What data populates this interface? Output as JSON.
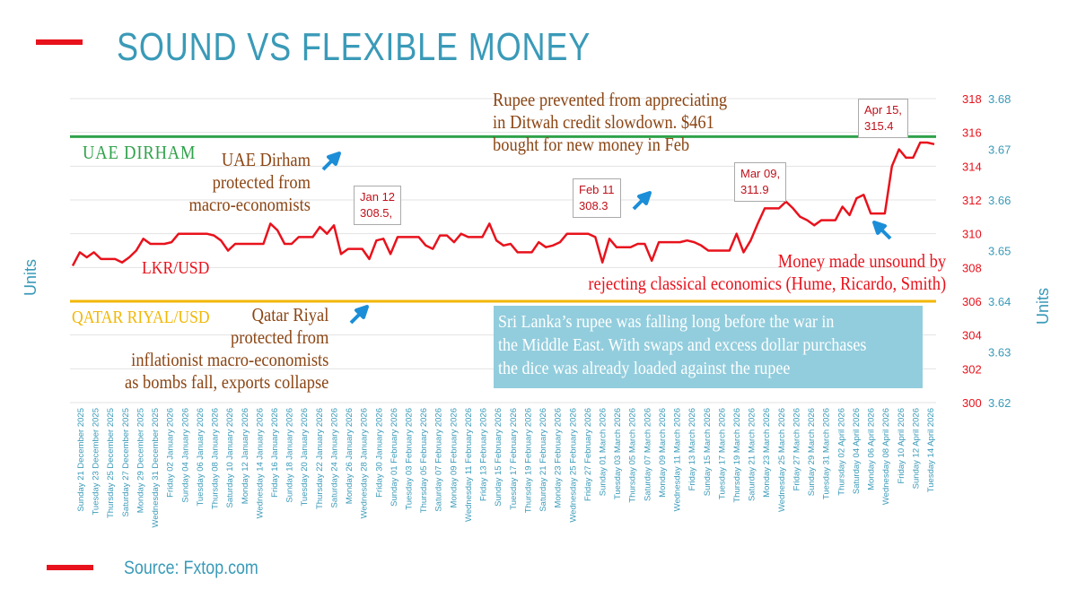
{
  "slide": {
    "title": "SOUND VS FLEXIBLE MONEY",
    "source": "Source: Fxtop.com"
  },
  "colors": {
    "title": "#3a9ab8",
    "lkr_line": "#e8121c",
    "uae_line": "#2fa24a",
    "qatar_line": "#f2b705",
    "annotation": "#8b4513",
    "note_box": "#92cddd",
    "grid": "#e3e3e3"
  },
  "labels": {
    "lkr": "LKR/USD",
    "uae": "UAE DIRHAM",
    "qatar": "QATAR RIYAL/USD",
    "units_left": "Units",
    "units_right": "Units"
  },
  "annotations": {
    "uae_protected": [
      "UAE Dirham",
      "protected from",
      "macro-economists"
    ],
    "qatar_protected": [
      "Qatar Riyal",
      "protected from",
      "inflationist macro-economists",
      "as bombs fall, exports collapse"
    ],
    "rupee_prevented": [
      "Rupee prevented from  appreciating",
      "in Ditwah credit slowdown. $461",
      "bought for new money in Feb"
    ],
    "unsound": [
      "Money made unsound by",
      "rejecting classical economics (Hume, Ricardo, Smith)"
    ],
    "note_box": [
      "Sri Lanka’s rupee was falling long before the war in",
      "the Middle East. With swaps and excess dollar purchases",
      "the dice was already loaded against the rupee"
    ]
  },
  "callouts": [
    {
      "lines": [
        "Jan 12",
        "308.5,"
      ]
    },
    {
      "lines": [
        "Feb 11",
        "308.3"
      ]
    },
    {
      "lines": [
        "Mar 09,",
        "311.9"
      ]
    },
    {
      "lines": [
        "Apr 15,",
        "315.4"
      ]
    }
  ],
  "chart_data": {
    "type": "line",
    "title": "",
    "xlabel": "",
    "ylabel": "Units",
    "y2label": "Units",
    "ylim": [
      300,
      318
    ],
    "y_ticks": [
      300,
      302,
      304,
      306,
      308,
      310,
      312,
      314,
      316,
      318
    ],
    "y2lim": [
      3.62,
      3.68
    ],
    "y2_ticks": [
      "3.62",
      "3.63",
      "3.64",
      "3.65",
      "3.66",
      "3.67",
      "3.68"
    ],
    "grid": true,
    "x_tick_labels": [
      "Sunday 21 December 2025",
      "Tuesday 23 December 2025",
      "Thursday 25 December 2025",
      "Saturday 27 December 2025",
      "Monday 29 December 2025",
      "Wednesday 31 December 2025",
      "Friday 02 January 2026",
      "Sunday 04 January 2026",
      "Tuesday 06 January 2026",
      "Thursday 08 January 2026",
      "Saturday 10 January 2026",
      "Monday 12 January 2026",
      "Wednesday 14 January 2026",
      "Friday 16 January 2026",
      "Sunday 18 January 2026",
      "Tuesday 20 January 2026",
      "Thursday 22 January 2026",
      "Saturday 24 January 2026",
      "Monday 26 January 2026",
      "Wednesday 28 January 2026",
      "Friday 30 January 2026",
      "Sunday 01 February 2026",
      "Tuesday 03 February 2026",
      "Thursday 05 February 2026",
      "Saturday 07 February 2026",
      "Monday 09 February 2026",
      "Wednesday 11 February 2026",
      "Friday 13 February 2026",
      "Sunday 15 February 2026",
      "Tuesday 17 February 2026",
      "Thursday 19 February 2026",
      "Saturday 21 February 2026",
      "Monday 23 February 2026",
      "Wednesday 25 February 2026",
      "Friday 27 February 2026",
      "Sunday 01 March 2026",
      "Tuesday 03 March 2026",
      "Thursday 05 March 2026",
      "Saturday 07 March 2026",
      "Monday 09 March 2026",
      "Wednesday 11 March 2026",
      "Friday 13 March 2026",
      "Sunday 15 March 2026",
      "Tuesday 17 March 2026",
      "Thursday 19 March 2026",
      "Saturday 21 March 2026",
      "Monday 23 March 2026",
      "Wednesday 25 March 2026",
      "Friday 27 March 2026",
      "Sunday 29 March 2026",
      "Tuesday 31 March 2026",
      "Thursday 02 April 2026",
      "Saturday 04 April 2026",
      "Monday 06 April 2026",
      "Wednesday 08 April 2026",
      "Friday 10 April 2026",
      "Sunday 12 April 2026",
      "Tuesday 14 April 2026"
    ],
    "x_start": "2025-12-21",
    "x_end": "2026-04-15",
    "series": [
      {
        "name": "LKR/USD",
        "axis": "left",
        "values": [
          308.1,
          308.9,
          308.6,
          308.9,
          308.5,
          308.5,
          308.5,
          308.3,
          308.6,
          309.0,
          309.7,
          309.4,
          309.4,
          309.4,
          309.5,
          310.0,
          310.0,
          310.0,
          310.0,
          310.0,
          309.9,
          309.6,
          309.0,
          309.4,
          309.4,
          309.4,
          309.4,
          309.4,
          310.6,
          310.2,
          309.4,
          309.4,
          309.8,
          309.8,
          309.8,
          310.4,
          310.0,
          310.5,
          308.8,
          309.1,
          309.1,
          309.1,
          308.5,
          309.6,
          309.7,
          308.8,
          309.8,
          309.8,
          309.8,
          309.8,
          309.3,
          309.1,
          309.9,
          309.9,
          309.5,
          310.0,
          309.8,
          309.8,
          309.8,
          310.6,
          309.6,
          309.3,
          309.4,
          308.9,
          308.9,
          308.9,
          309.5,
          309.2,
          309.3,
          309.5,
          310.0,
          310.0,
          310.0,
          310.0,
          309.8,
          308.3,
          309.7,
          309.2,
          309.2,
          309.2,
          309.4,
          309.4,
          308.4,
          309.5,
          309.5,
          309.5,
          309.5,
          309.6,
          309.5,
          309.3,
          309.0,
          309.0,
          309.0,
          309.0,
          310.0,
          308.9,
          309.6,
          310.6,
          311.5,
          311.5,
          311.5,
          311.9,
          311.5,
          311.0,
          310.8,
          310.5,
          310.8,
          310.8,
          310.8,
          311.6,
          311.1,
          312.1,
          312.3,
          311.2,
          311.2,
          311.2,
          314.0,
          315.0,
          314.5,
          314.5,
          315.4,
          315.4,
          315.3
        ]
      },
      {
        "name": "UAE DIRHAM",
        "axis": "right",
        "values": [
          3.6725,
          3.6725
        ]
      },
      {
        "name": "QATAR RIYAL/USD",
        "axis": "right",
        "values": [
          3.64,
          3.64
        ]
      }
    ]
  }
}
